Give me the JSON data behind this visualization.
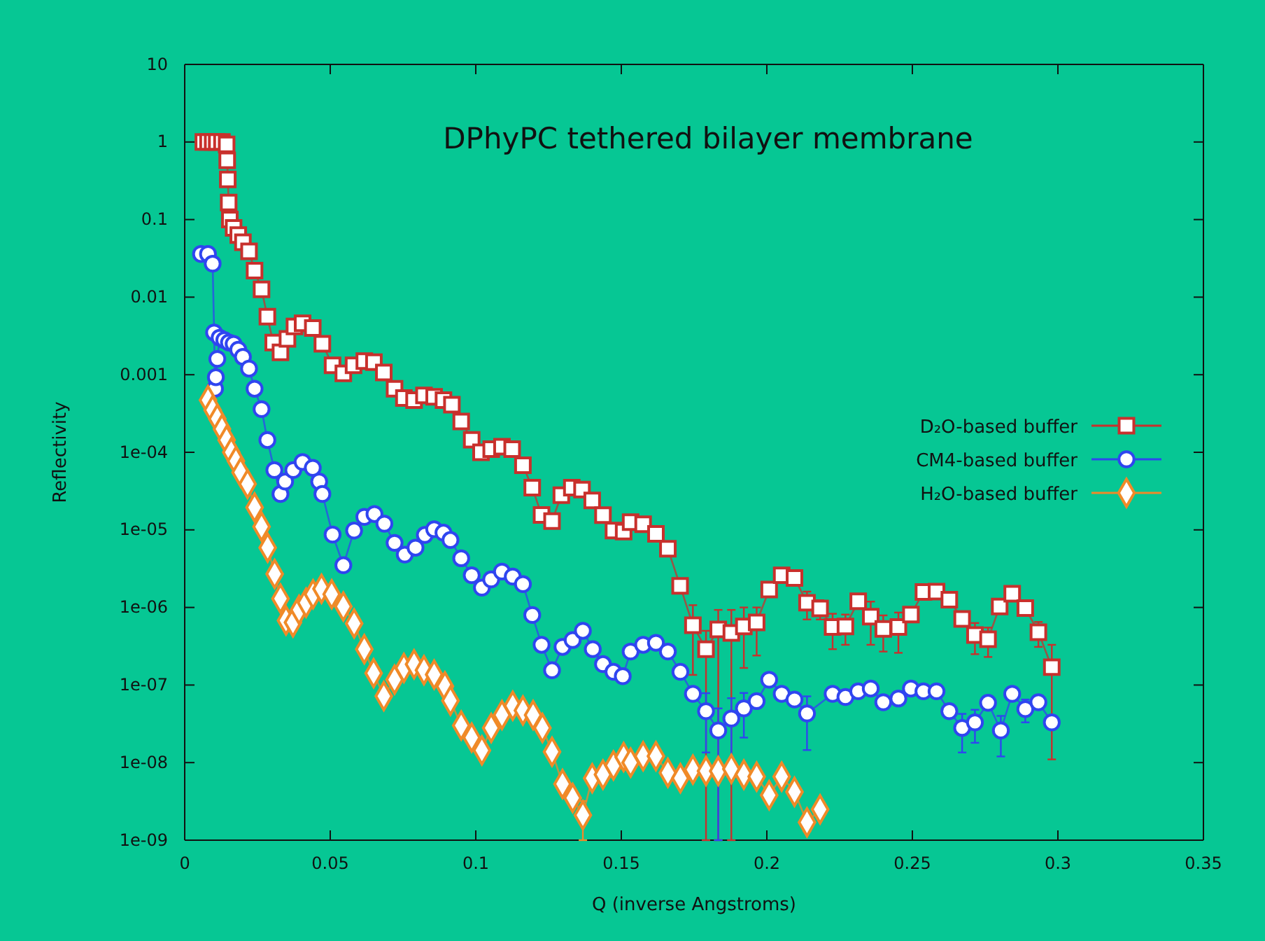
{
  "chart_data": {
    "type": "line",
    "title": "DPhyPC tethered bilayer membrane",
    "xlabel": "Q (inverse Angstroms)",
    "ylabel": "Reflectivity",
    "log": "y",
    "grid": false,
    "legend": "right",
    "line_style": "solid",
    "xlim": [
      0,
      0.35
    ],
    "xticks": [
      0,
      0.05,
      0.1,
      0.15,
      0.2,
      0.25,
      0.3,
      0.35
    ],
    "ylim": [
      1e-09,
      10
    ],
    "yticks": [
      10,
      1,
      0.1,
      0.01,
      0.001,
      {
        "value": 0.0001,
        "label": "1e-04"
      },
      {
        "value": 1e-05,
        "label": "1e-05"
      },
      {
        "value": 1e-06,
        "label": "1e-06"
      },
      {
        "value": 1e-07,
        "label": "1e-07"
      },
      {
        "value": 1e-08,
        "label": "1e-08"
      },
      {
        "value": 1e-09,
        "label": "1e-09"
      }
    ],
    "series": [
      {
        "name": "D₂O-based buffer",
        "color": "#c8302c",
        "marker": "square",
        "x": [
          0.0064,
          0.008,
          0.0096,
          0.011,
          0.0128,
          0.0144,
          0.0146,
          0.0148,
          0.0151,
          0.0155,
          0.0168,
          0.0184,
          0.02,
          0.0221,
          0.024,
          0.0264,
          0.0284,
          0.0304,
          0.0329,
          0.0353,
          0.0377,
          0.0405,
          0.044,
          0.0473,
          0.0508,
          0.0545,
          0.058,
          0.0617,
          0.065,
          0.0684,
          0.0721,
          0.0753,
          0.0788,
          0.0822,
          0.0857,
          0.0889,
          0.0918,
          0.095,
          0.0986,
          0.1018,
          0.1053,
          0.109,
          0.1125,
          0.1162,
          0.1194,
          0.1226,
          0.1262,
          0.1294,
          0.133,
          0.1365,
          0.14,
          0.1437,
          0.1473,
          0.1508,
          0.1532,
          0.1575,
          0.1619,
          0.166,
          0.1702,
          0.1746,
          0.1791,
          0.1833,
          0.1878,
          0.1921,
          0.1965,
          0.2008,
          0.2051,
          0.2095,
          0.2138,
          0.2183,
          0.2226,
          0.227,
          0.2314,
          0.2357,
          0.24,
          0.2452,
          0.2495,
          0.2538,
          0.2583,
          0.2627,
          0.2671,
          0.2715,
          0.276,
          0.28,
          0.2843,
          0.2888,
          0.2933,
          0.2979
        ],
        "values": [
          1,
          1,
          1,
          1,
          1,
          0.93,
          0.58,
          0.33,
          0.166,
          0.1,
          0.078,
          0.063,
          0.051,
          0.039,
          0.022,
          0.0126,
          0.0056,
          0.0026,
          0.00194,
          0.0029,
          0.0042,
          0.0046,
          0.004,
          0.0025,
          0.00132,
          0.00104,
          0.00132,
          0.0015,
          0.00145,
          0.00107,
          0.00066,
          0.0005,
          0.00047,
          0.00054,
          0.00052,
          0.00047,
          0.00041,
          0.00025,
          0.000145,
          0.0001,
          0.00011,
          0.000118,
          0.00011,
          6.8e-05,
          3.5e-05,
          1.56e-05,
          1.3e-05,
          2.8e-05,
          3.5e-05,
          3.3e-05,
          2.4e-05,
          1.55e-05,
          9.8e-06,
          9.5e-06,
          1.26e-05,
          1.18e-05,
          8.9e-06,
          5.7e-06,
          1.9e-06,
          5.9e-07,
          2.9e-07,
          5.2e-07,
          4.7e-07,
          5.7e-07,
          6.4e-07,
          1.7e-06,
          2.6e-06,
          2.4e-06,
          1.15e-06,
          9.7e-07,
          5.6e-07,
          5.7e-07,
          1.2e-06,
          7.6e-07,
          5.3e-07,
          5.6e-07,
          8.1e-07,
          1.58e-06,
          1.6e-06,
          1.26e-06,
          7.1e-07,
          4.4e-07,
          3.9e-07,
          1.03e-06,
          1.5e-06,
          9.8e-07,
          4.8e-07,
          1.7e-07
        ],
        "errors": [
          null,
          null,
          null,
          null,
          null,
          null,
          null,
          null,
          null,
          null,
          null,
          null,
          null,
          null,
          null,
          null,
          null,
          null,
          null,
          null,
          null,
          null,
          null,
          null,
          null,
          null,
          null,
          null,
          null,
          null,
          null,
          null,
          null,
          null,
          null,
          null,
          null,
          null,
          null,
          null,
          null,
          null,
          null,
          null,
          null,
          null,
          null,
          null,
          null,
          null,
          null,
          null,
          null,
          null,
          null,
          null,
          null,
          null,
          null,
          [
            1.35e-07,
            1.07e-06
          ],
          [
            1e-09,
            5e-07
          ],
          [
            1e-09,
            9.3e-07
          ],
          [
            1e-09,
            9.3e-07
          ],
          [
            1.66e-07,
            1e-06
          ],
          [
            2.4e-07,
            1e-06
          ],
          null,
          null,
          null,
          4.5e-07,
          2.7e-07,
          2.7e-07,
          2.4e-07,
          null,
          4.3e-07,
          2.6e-07,
          3e-07,
          null,
          null,
          null,
          null,
          null,
          1.9e-07,
          1.6e-07,
          null,
          null,
          null,
          1.7e-07,
          [
            1.1e-08,
            3.3e-07
          ]
        ]
      },
      {
        "name": "CM4-based buffer",
        "color": "#2f45f0",
        "marker": "circle",
        "x": [
          0.0056,
          0.008,
          0.0096,
          0.0101,
          0.0104,
          0.0107,
          0.0112,
          0.012,
          0.0136,
          0.0152,
          0.0168,
          0.0184,
          0.02,
          0.0221,
          0.024,
          0.0264,
          0.0284,
          0.0308,
          0.0329,
          0.0345,
          0.0373,
          0.0405,
          0.044,
          0.0462,
          0.0473,
          0.0508,
          0.0545,
          0.0582,
          0.0617,
          0.0652,
          0.0686,
          0.0721,
          0.0756,
          0.0793,
          0.0825,
          0.0857,
          0.0889,
          0.0913,
          0.095,
          0.0986,
          0.1021,
          0.1053,
          0.109,
          0.1127,
          0.1162,
          0.1194,
          0.1226,
          0.1262,
          0.1298,
          0.1333,
          0.1368,
          0.1402,
          0.1437,
          0.1473,
          0.1505,
          0.1532,
          0.1575,
          0.1619,
          0.166,
          0.1703,
          0.1746,
          0.1791,
          0.1833,
          0.1878,
          0.1921,
          0.1965,
          0.2008,
          0.2051,
          0.2095,
          0.2138,
          0.2226,
          0.227,
          0.2314,
          0.2357,
          0.24,
          0.2452,
          0.2495,
          0.2538,
          0.2583,
          0.2627,
          0.2671,
          0.2715,
          0.276,
          0.2804,
          0.2843,
          0.2888,
          0.2933,
          0.2979
        ],
        "values": [
          0.036,
          0.036,
          0.027,
          0.0035,
          0.00066,
          0.00093,
          0.0016,
          0.003,
          0.0028,
          0.0026,
          0.0025,
          0.0021,
          0.0017,
          0.0012,
          0.00066,
          0.00036,
          0.000144,
          5.9e-05,
          2.9e-05,
          4.2e-05,
          5.9e-05,
          7.5e-05,
          6.3e-05,
          4.2e-05,
          2.9e-05,
          8.7e-06,
          3.5e-06,
          9.8e-06,
          1.47e-05,
          1.6e-05,
          1.2e-05,
          6.8e-06,
          4.8e-06,
          5.9e-06,
          8.6e-06,
          1.02e-05,
          9.2e-06,
          7.4e-06,
          4.3e-06,
          2.6e-06,
          1.8e-06,
          2.3e-06,
          2.9e-06,
          2.5e-06,
          2e-06,
          8e-07,
          3.3e-07,
          1.55e-07,
          3.1e-07,
          3.8e-07,
          5e-07,
          2.9e-07,
          1.86e-07,
          1.48e-07,
          1.3e-07,
          2.7e-07,
          3.3e-07,
          3.5e-07,
          2.7e-07,
          1.48e-07,
          7.7e-08,
          4.6e-08,
          2.6e-08,
          3.7e-08,
          5e-08,
          6.2e-08,
          1.17e-07,
          7.7e-08,
          6.5e-08,
          4.3e-08,
          7.7e-08,
          7e-08,
          8.3e-08,
          9e-08,
          6e-08,
          6.7e-08,
          9e-08,
          8.3e-08,
          8.3e-08,
          4.6e-08,
          2.8e-08,
          3.3e-08,
          5.9e-08,
          2.6e-08,
          7.7e-08,
          4.9e-08,
          6e-08,
          3.3e-08
        ],
        "errors": [
          null,
          null,
          null,
          null,
          null,
          null,
          null,
          null,
          null,
          null,
          null,
          null,
          null,
          null,
          null,
          null,
          null,
          null,
          null,
          null,
          null,
          null,
          null,
          null,
          null,
          null,
          null,
          null,
          null,
          null,
          null,
          null,
          null,
          null,
          null,
          null,
          null,
          null,
          null,
          null,
          null,
          null,
          null,
          null,
          null,
          null,
          null,
          null,
          null,
          null,
          null,
          null,
          null,
          null,
          null,
          null,
          null,
          null,
          null,
          null,
          null,
          3.25e-08,
          [
            1e-09,
            5e-08
          ],
          3.07e-08,
          2.9e-08,
          null,
          null,
          null,
          null,
          2.85e-08,
          null,
          null,
          null,
          null,
          null,
          null,
          null,
          null,
          null,
          null,
          1.45e-08,
          1.5e-08,
          null,
          1.4e-08,
          null,
          1.6e-08,
          null,
          null
        ]
      },
      {
        "name": "H₂O-based buffer",
        "color": "#f08a28",
        "marker": "diamond",
        "x": [
          0.008,
          0.0096,
          0.0112,
          0.0128,
          0.0144,
          0.016,
          0.0176,
          0.0192,
          0.0216,
          0.024,
          0.0264,
          0.0285,
          0.0309,
          0.0329,
          0.0348,
          0.0372,
          0.0393,
          0.0417,
          0.0441,
          0.047,
          0.0505,
          0.0545,
          0.0582,
          0.0617,
          0.0649,
          0.0684,
          0.0721,
          0.0753,
          0.0788,
          0.0822,
          0.0857,
          0.0894,
          0.0913,
          0.095,
          0.0986,
          0.1021,
          0.1053,
          0.109,
          0.1127,
          0.1162,
          0.1197,
          0.1229,
          0.1262,
          0.1298,
          0.1333,
          0.1368,
          0.14,
          0.1437,
          0.1473,
          0.1508,
          0.1532,
          0.1575,
          0.1619,
          0.166,
          0.1703,
          0.1746,
          0.1791,
          0.1833,
          0.1878,
          0.1921,
          0.1965,
          0.2008,
          0.2051,
          0.2095,
          0.2138,
          0.2183
        ],
        "values": [
          0.00047,
          0.00035,
          0.00027,
          0.0002,
          0.000144,
          0.0001,
          7.7e-05,
          5.5e-05,
          3.9e-05,
          1.95e-05,
          1.1e-05,
          5.9e-06,
          2.7e-06,
          1.3e-06,
          6.8e-07,
          6.4e-07,
          9.3e-07,
          1.15e-06,
          1.48e-06,
          1.74e-06,
          1.48e-06,
          1.03e-06,
          6.2e-07,
          2.9e-07,
          1.42e-07,
          7.2e-08,
          1.17e-07,
          1.66e-07,
          1.85e-07,
          1.55e-07,
          1.36e-07,
          9.6e-08,
          6.3e-08,
          3e-08,
          2.1e-08,
          1.44e-08,
          2.8e-08,
          4.1e-08,
          5.4e-08,
          4.7e-08,
          4.1e-08,
          2.8e-08,
          1.38e-08,
          5.3e-09,
          3.5e-09,
          2.1e-09,
          6.3e-09,
          7e-09,
          9.2e-09,
          1.18e-08,
          1e-08,
          1.21e-08,
          1.21e-08,
          7.4e-09,
          6.3e-09,
          8.1e-09,
          7.8e-09,
          7.8e-09,
          8.3e-09,
          7e-09,
          6.6e-09,
          3.8e-09,
          6.6e-09,
          4.2e-09,
          1.7e-09,
          2.5e-09
        ],
        "errors": [
          null,
          null,
          null,
          null,
          null,
          null,
          null,
          null,
          null,
          null,
          null,
          null,
          null,
          null,
          null,
          null,
          null,
          null,
          null,
          null,
          null,
          null,
          null,
          null,
          null,
          null,
          null,
          null,
          null,
          null,
          null,
          null,
          null,
          null,
          null,
          null,
          null,
          null,
          null,
          null,
          null,
          null,
          null,
          null,
          null,
          [
            1e-09,
            3.2e-09
          ],
          null,
          null,
          null,
          null,
          null,
          null,
          null,
          null,
          null,
          null,
          null,
          null,
          null,
          null,
          null,
          null,
          null,
          null,
          4e-10,
          null
        ]
      }
    ]
  }
}
